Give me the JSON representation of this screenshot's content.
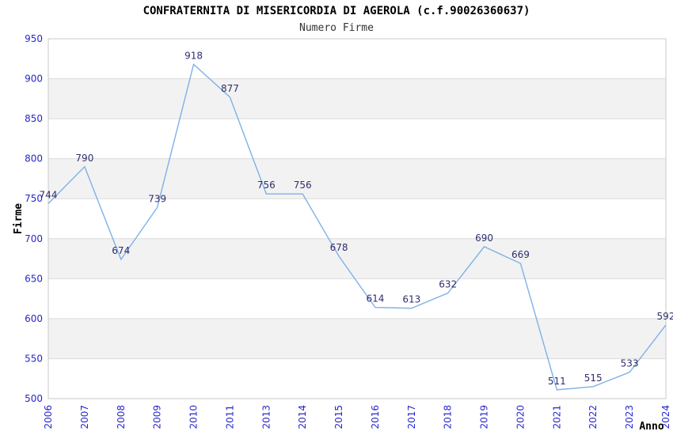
{
  "chart_data": {
    "type": "line",
    "title": "CONFRATERNITA DI MISERICORDIA DI AGEROLA (c.f.90026360637)",
    "subtitle": "Numero Firme",
    "xlabel": "Anno",
    "ylabel": "Firme",
    "categories": [
      "2006",
      "2007",
      "2008",
      "2009",
      "2010",
      "2011",
      "2013",
      "2014",
      "2015",
      "2016",
      "2017",
      "2018",
      "2019",
      "2020",
      "2021",
      "2022",
      "2023",
      "2024"
    ],
    "values": [
      744,
      790,
      674,
      739,
      918,
      877,
      756,
      756,
      678,
      614,
      613,
      632,
      690,
      669,
      511,
      515,
      533,
      592
    ],
    "ylim": [
      500,
      950
    ],
    "ytick_step": 50,
    "grid": "alternating-horizontal-bands",
    "legend": "none",
    "colors": {
      "line": "#7fb1e6",
      "tick_label": "#2727cc",
      "data_label": "#2e2e6e",
      "band": "#f2f2f2",
      "grid_line": "#dcdcdc",
      "border": "#c9c9c9",
      "title": "#000000",
      "subtitle": "#333333",
      "axis_title": "#000000"
    }
  }
}
